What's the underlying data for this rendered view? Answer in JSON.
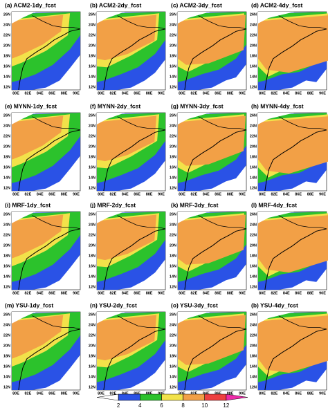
{
  "chart_data": {
    "type": "map-panels",
    "panels": [
      {
        "title": "(a) ACM2-1dy_fcst"
      },
      {
        "title": "(b) ACM2-2dy_fcst"
      },
      {
        "title": "(c) ACM2-3dy_fcst"
      },
      {
        "title": "(d) ACM2-4dy_fcst"
      },
      {
        "title": "(e) MYNN-1dy_fcst"
      },
      {
        "title": "(f) MYNN-2dy_fcst"
      },
      {
        "title": "(g) MYNN-3dy_fcst"
      },
      {
        "title": "(h) MYNN-4dy_fcst"
      },
      {
        "title": "(i) MRF-1dy_fcst"
      },
      {
        "title": "(j) MRF-2dy_fcst"
      },
      {
        "title": "(k) MRF-3dy_fcst"
      },
      {
        "title": "(l) MRF-4dy_fcst"
      },
      {
        "title": "(m) YSU-1dy_fcst"
      },
      {
        "title": "(n) YSU-2dy_fcst"
      },
      {
        "title": "(o) YSU-3dy_fcst"
      },
      {
        "title": "(b) YSU-4dy_fcst"
      }
    ],
    "y_labels": [
      "26N",
      "24N",
      "22N",
      "20N",
      "18N",
      "16N",
      "14N",
      "12N"
    ],
    "x_labels": [
      "80E",
      "82E",
      "84E",
      "86E",
      "88E",
      "90E"
    ],
    "colorbar": {
      "ticks": [
        2,
        4,
        6,
        8,
        10,
        12
      ],
      "colors": [
        "#ffffff",
        "#2a52e6",
        "#2cc22c",
        "#f2e24a",
        "#f2a046",
        "#ee4040",
        "#ee2aa8"
      ]
    }
  }
}
